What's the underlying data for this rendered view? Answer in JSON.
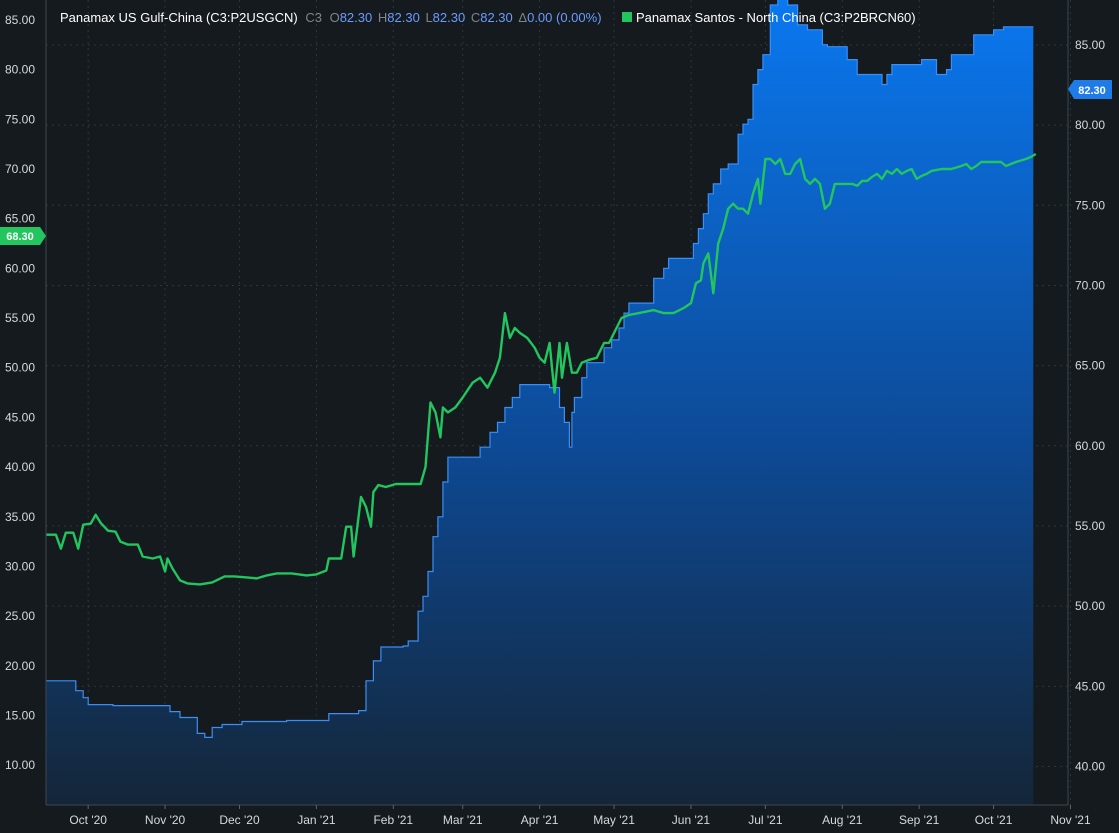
{
  "legend": {
    "series1_name": "Panamax US Gulf-China (C3:P2USGCN)",
    "series1_code": "C3",
    "o_label": "O",
    "o_value": "82.30",
    "h_label": "H",
    "h_value": "82.30",
    "l_label": "L",
    "l_value": "82.30",
    "c_label": "C",
    "c_value": "82.30",
    "delta_label": "Δ",
    "delta_value": "0.00 (0.00%)",
    "series2_name": "Panamax Santos - North China (C3:P2BRCN60)"
  },
  "badges": {
    "right_value": "82.30",
    "left_value": "68.30"
  },
  "colors": {
    "background": "#151a1f",
    "area_top": "#0a78f0",
    "area_bottom": "#142638",
    "area_line": "#3a8ef5",
    "green_line": "#22c55e",
    "grid": "#2b3640"
  },
  "chart_data": {
    "type": "line",
    "x_ticks": [
      "Oct '20",
      "Nov '20",
      "Dec '20",
      "Jan '21",
      "Feb '21",
      "Mar '21",
      "Apr '21",
      "May '21",
      "Jun '21",
      "Jul '21",
      "Aug '21",
      "Sep '21",
      "Oct '21",
      "Nov '21"
    ],
    "x_tick_values": [
      0,
      31,
      61,
      92,
      123,
      151,
      182,
      212,
      243,
      273,
      304,
      335,
      365,
      396
    ],
    "x_range": [
      -17,
      395
    ],
    "left_axis": {
      "ticks": [
        "85.00",
        "80.00",
        "75.00",
        "70.00",
        "65.00",
        "60.00",
        "55.00",
        "50.00",
        "45.00",
        "40.00",
        "35.00",
        "30.00",
        "25.00",
        "20.00",
        "15.00",
        "10.00"
      ],
      "range": [
        6,
        87
      ]
    },
    "right_axis": {
      "ticks": [
        "85.00",
        "80.00",
        "75.00",
        "70.00",
        "65.00",
        "60.00",
        "55.00",
        "50.00",
        "45.00",
        "40.00"
      ],
      "range": [
        37.6,
        87.8
      ]
    },
    "series": [
      {
        "name": "Panamax US Gulf-China (C3:P2USGCN)",
        "axis": "left",
        "style": "area",
        "points": [
          [
            -17,
            18.5
          ],
          [
            -7,
            18.5
          ],
          [
            -5,
            17.5
          ],
          [
            -2,
            16.8
          ],
          [
            0,
            16.1
          ],
          [
            8,
            16.1
          ],
          [
            10,
            16.0
          ],
          [
            28,
            16.0
          ],
          [
            33,
            15.4
          ],
          [
            37,
            14.8
          ],
          [
            44,
            13.2
          ],
          [
            47,
            12.8
          ],
          [
            50,
            13.8
          ],
          [
            54,
            14.1
          ],
          [
            58,
            14.1
          ],
          [
            62,
            14.4
          ],
          [
            68,
            14.4
          ],
          [
            80,
            14.5
          ],
          [
            90,
            14.5
          ],
          [
            95,
            14.5
          ],
          [
            97,
            15.2
          ],
          [
            104,
            15.2
          ],
          [
            109,
            15.5
          ],
          [
            112,
            18.5
          ],
          [
            115,
            20.5
          ],
          [
            118,
            21.9
          ],
          [
            122,
            21.9
          ],
          [
            127,
            22.0
          ],
          [
            129,
            22.5
          ],
          [
            133,
            25.5
          ],
          [
            135,
            27.0
          ],
          [
            137,
            29.5
          ],
          [
            139,
            33.0
          ],
          [
            141,
            35.0
          ],
          [
            143,
            38.5
          ],
          [
            145,
            41.0
          ],
          [
            148,
            41.0
          ],
          [
            155,
            41.0
          ],
          [
            158,
            42.0
          ],
          [
            162,
            43.5
          ],
          [
            165,
            44.5
          ],
          [
            168,
            46.0
          ],
          [
            171,
            47.0
          ],
          [
            174,
            48.3
          ],
          [
            177,
            48.3
          ],
          [
            182,
            48.3
          ],
          [
            186,
            48.0
          ],
          [
            190,
            46.0
          ],
          [
            192,
            44.5
          ],
          [
            194,
            42.0
          ],
          [
            195,
            45.5
          ],
          [
            196,
            47.0
          ],
          [
            199,
            49.0
          ],
          [
            201,
            50.5
          ],
          [
            205,
            50.5
          ],
          [
            208,
            52.0
          ],
          [
            211,
            52.8
          ],
          [
            214,
            54.0
          ],
          [
            216,
            55.5
          ],
          [
            218,
            56.5
          ],
          [
            222,
            56.5
          ],
          [
            226,
            56.5
          ],
          [
            228,
            59.0
          ],
          [
            232,
            60.0
          ],
          [
            234,
            61.0
          ],
          [
            238,
            61.0
          ],
          [
            242,
            61.0
          ],
          [
            244,
            62.5
          ],
          [
            246,
            64.0
          ],
          [
            248,
            65.5
          ],
          [
            250,
            67.5
          ],
          [
            252,
            68.5
          ],
          [
            255,
            70.0
          ],
          [
            258,
            70.5
          ],
          [
            262,
            73.5
          ],
          [
            264,
            74.5
          ],
          [
            266,
            75.0
          ],
          [
            268,
            78.5
          ],
          [
            270,
            80.0
          ],
          [
            272,
            81.5
          ],
          [
            275,
            86.5
          ],
          [
            278,
            87.2
          ],
          [
            282,
            86.5
          ],
          [
            286,
            84.5
          ],
          [
            290,
            84.0
          ],
          [
            294,
            84.0
          ],
          [
            296,
            82.5
          ],
          [
            298,
            82.3
          ],
          [
            303,
            82.3
          ],
          [
            306,
            81.0
          ],
          [
            310,
            79.5
          ],
          [
            314,
            79.5
          ],
          [
            318,
            79.5
          ],
          [
            320,
            78.5
          ],
          [
            322,
            79.5
          ],
          [
            324,
            80.5
          ],
          [
            330,
            80.5
          ],
          [
            334,
            80.5
          ],
          [
            336,
            81.0
          ],
          [
            340,
            81.0
          ],
          [
            342,
            79.5
          ],
          [
            346,
            80.0
          ],
          [
            348,
            81.5
          ],
          [
            355,
            81.5
          ],
          [
            357,
            83.5
          ],
          [
            362,
            83.5
          ],
          [
            365,
            84.0
          ],
          [
            369,
            84.3
          ],
          [
            376,
            84.3
          ],
          [
            381,
            84.3
          ]
        ]
      },
      {
        "name": "Panamax Santos - North China (C3:P2BRCN60)",
        "axis": "left",
        "style": "line",
        "points": [
          [
            -17,
            33.2
          ],
          [
            -13,
            33.2
          ],
          [
            -11,
            31.8
          ],
          [
            -9,
            33.4
          ],
          [
            -6,
            33.4
          ],
          [
            -4,
            31.8
          ],
          [
            -2,
            34.2
          ],
          [
            1,
            34.3
          ],
          [
            3,
            35.2
          ],
          [
            5,
            34.4
          ],
          [
            8,
            33.6
          ],
          [
            11,
            33.5
          ],
          [
            13,
            32.5
          ],
          [
            16,
            32.2
          ],
          [
            20,
            32.2
          ],
          [
            22,
            31.0
          ],
          [
            26,
            30.8
          ],
          [
            29,
            31.0
          ],
          [
            31,
            29.5
          ],
          [
            32,
            30.8
          ],
          [
            34,
            29.8
          ],
          [
            37,
            28.6
          ],
          [
            40,
            28.3
          ],
          [
            45,
            28.2
          ],
          [
            50,
            28.4
          ],
          [
            55,
            29.0
          ],
          [
            59,
            29.0
          ],
          [
            64,
            28.9
          ],
          [
            68,
            28.8
          ],
          [
            72,
            29.1
          ],
          [
            76,
            29.3
          ],
          [
            82,
            29.3
          ],
          [
            88,
            29.1
          ],
          [
            92,
            29.2
          ],
          [
            96,
            29.6
          ],
          [
            97,
            30.8
          ],
          [
            102,
            30.8
          ],
          [
            104,
            34.0
          ],
          [
            106,
            34.0
          ],
          [
            107,
            31.0
          ],
          [
            108,
            33.0
          ],
          [
            110,
            37.0
          ],
          [
            112,
            36.0
          ],
          [
            114,
            34.0
          ],
          [
            115,
            37.5
          ],
          [
            117,
            38.2
          ],
          [
            120,
            38.0
          ],
          [
            124,
            38.3
          ],
          [
            128,
            38.3
          ],
          [
            134,
            38.3
          ],
          [
            136,
            40.0
          ],
          [
            138,
            46.5
          ],
          [
            140,
            45.5
          ],
          [
            142,
            43.0
          ],
          [
            143,
            46.0
          ],
          [
            145,
            45.5
          ],
          [
            148,
            46.0
          ],
          [
            151,
            47.0
          ],
          [
            155,
            48.5
          ],
          [
            158,
            49.0
          ],
          [
            161,
            48.0
          ],
          [
            164,
            49.5
          ],
          [
            166,
            51.0
          ],
          [
            168,
            55.5
          ],
          [
            170,
            53.0
          ],
          [
            172,
            54.0
          ],
          [
            174,
            53.5
          ],
          [
            177,
            53.0
          ],
          [
            180,
            52.0
          ],
          [
            182,
            51.0
          ],
          [
            184,
            50.5
          ],
          [
            186,
            52.5
          ],
          [
            187,
            50.0
          ],
          [
            188,
            47.5
          ],
          [
            190,
            52.5
          ],
          [
            191,
            49.0
          ],
          [
            193,
            52.5
          ],
          [
            195,
            49.5
          ],
          [
            197,
            49.5
          ],
          [
            199,
            50.5
          ],
          [
            202,
            50.8
          ],
          [
            205,
            51.0
          ],
          [
            208,
            52.5
          ],
          [
            210,
            52.5
          ],
          [
            212,
            53.5
          ],
          [
            215,
            55.0
          ],
          [
            218,
            55.3
          ],
          [
            222,
            55.5
          ],
          [
            228,
            55.8
          ],
          [
            232,
            55.5
          ],
          [
            236,
            55.5
          ],
          [
            240,
            56.0
          ],
          [
            243,
            56.5
          ],
          [
            245,
            58.5
          ],
          [
            247,
            58.8
          ],
          [
            248,
            60.5
          ],
          [
            250,
            61.5
          ],
          [
            252,
            57.5
          ],
          [
            254,
            62.5
          ],
          [
            256,
            64.0
          ],
          [
            258,
            66.0
          ],
          [
            260,
            66.5
          ],
          [
            262,
            66.0
          ],
          [
            264,
            66.0
          ],
          [
            266,
            65.5
          ],
          [
            268,
            67.5
          ],
          [
            270,
            69.0
          ],
          [
            271,
            66.5
          ],
          [
            273,
            71.0
          ],
          [
            275,
            71.0
          ],
          [
            277,
            70.5
          ],
          [
            279,
            71.0
          ],
          [
            281,
            69.5
          ],
          [
            283,
            69.5
          ],
          [
            285,
            70.5
          ],
          [
            287,
            71.0
          ],
          [
            289,
            69.0
          ],
          [
            291,
            68.5
          ],
          [
            293,
            69.0
          ],
          [
            295,
            68.5
          ],
          [
            297,
            66.0
          ],
          [
            299,
            66.5
          ],
          [
            301,
            68.5
          ],
          [
            304,
            68.5
          ],
          [
            308,
            68.5
          ],
          [
            310,
            68.3
          ],
          [
            312,
            68.8
          ],
          [
            314,
            68.8
          ],
          [
            316,
            69.2
          ],
          [
            318,
            69.5
          ],
          [
            320,
            69.0
          ],
          [
            322,
            69.8
          ],
          [
            324,
            69.5
          ],
          [
            326,
            70.0
          ],
          [
            328,
            69.5
          ],
          [
            330,
            69.8
          ],
          [
            332,
            70.0
          ],
          [
            334,
            69.0
          ],
          [
            336,
            69.3
          ],
          [
            338,
            69.5
          ],
          [
            340,
            69.8
          ],
          [
            344,
            70.0
          ],
          [
            348,
            70.0
          ],
          [
            352,
            70.3
          ],
          [
            354,
            70.5
          ],
          [
            356,
            70.0
          ],
          [
            358,
            70.3
          ],
          [
            360,
            70.7
          ],
          [
            364,
            70.7
          ],
          [
            368,
            70.7
          ],
          [
            370,
            70.3
          ],
          [
            372,
            70.5
          ],
          [
            374,
            70.7
          ],
          [
            378,
            71.0
          ],
          [
            380,
            71.2
          ],
          [
            382,
            71.5
          ]
        ]
      }
    ]
  }
}
